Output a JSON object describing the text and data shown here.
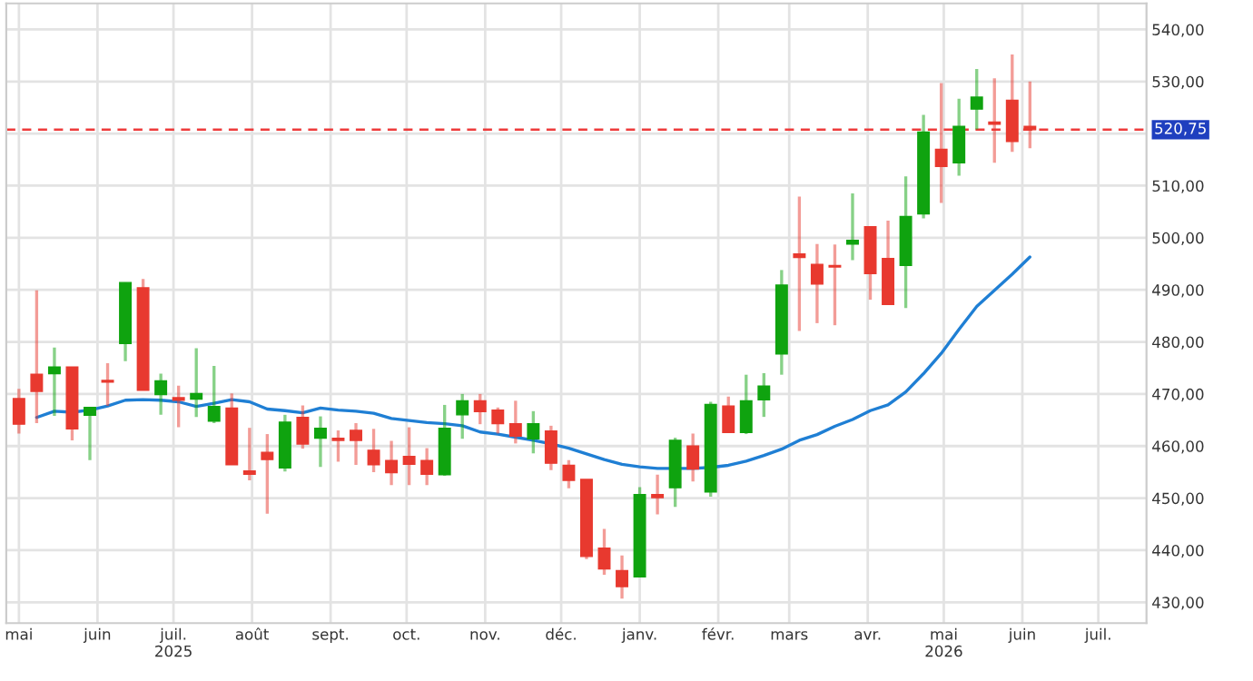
{
  "chart_data": {
    "type": "candlestick",
    "x": [
      "2025-05-01",
      "2025-05-08",
      "2025-05-15",
      "2025-05-22",
      "2025-05-29",
      "2025-06-05",
      "2025-06-12",
      "2025-06-19",
      "2025-06-26",
      "2025-07-03",
      "2025-07-10",
      "2025-07-17",
      "2025-07-24",
      "2025-07-31",
      "2025-08-07",
      "2025-08-14",
      "2025-08-21",
      "2025-08-28",
      "2025-09-04",
      "2025-09-11",
      "2025-09-18",
      "2025-09-25",
      "2025-10-02",
      "2025-10-09",
      "2025-10-16",
      "2025-10-23",
      "2025-10-30",
      "2025-11-06",
      "2025-11-13",
      "2025-11-20",
      "2025-11-27",
      "2025-12-04",
      "2025-12-11",
      "2025-12-18",
      "2025-12-25",
      "2026-01-01",
      "2026-01-08",
      "2026-01-15",
      "2026-01-22",
      "2026-01-29",
      "2026-02-05",
      "2026-02-12",
      "2026-02-19",
      "2026-02-26",
      "2026-03-05",
      "2026-03-12",
      "2026-03-19",
      "2026-03-26",
      "2026-04-02",
      "2026-04-09",
      "2026-04-16",
      "2026-04-23",
      "2026-04-30",
      "2026-05-07",
      "2026-05-14",
      "2026-05-21",
      "2026-05-28",
      "2026-06-04"
    ],
    "ohlc": [
      [
        469.1,
        471.0,
        462.4,
        464.2
      ],
      [
        473.8,
        489.9,
        464.4,
        470.5
      ],
      [
        473.9,
        478.9,
        465.8,
        475.2
      ],
      [
        475.2,
        475.2,
        461.1,
        463.3
      ],
      [
        465.9,
        467.4,
        457.3,
        467.4
      ],
      [
        472.6,
        475.9,
        467.7,
        472.3
      ],
      [
        479.7,
        491.4,
        476.3,
        491.4
      ],
      [
        490.4,
        492.1,
        470.7,
        470.7
      ],
      [
        469.9,
        473.9,
        466.0,
        472.5
      ],
      [
        469.3,
        471.6,
        463.6,
        468.8
      ],
      [
        469.0,
        478.8,
        465.6,
        470.1
      ],
      [
        464.8,
        475.4,
        464.4,
        467.6
      ],
      [
        467.3,
        470.1,
        456.4,
        456.4
      ],
      [
        455.2,
        463.5,
        453.4,
        454.6
      ],
      [
        458.8,
        462.3,
        447.0,
        457.4
      ],
      [
        455.8,
        466.0,
        455.1,
        464.6
      ],
      [
        465.5,
        467.8,
        459.5,
        460.4
      ],
      [
        461.5,
        465.7,
        456.0,
        463.4
      ],
      [
        461.5,
        463.0,
        457.0,
        461.1
      ],
      [
        463.0,
        464.4,
        456.4,
        461.1
      ],
      [
        459.2,
        463.3,
        455.0,
        456.4
      ],
      [
        457.2,
        461.0,
        452.5,
        454.9
      ],
      [
        458.0,
        463.6,
        452.5,
        456.5
      ],
      [
        457.2,
        459.6,
        452.5,
        454.6
      ],
      [
        454.5,
        467.9,
        454.3,
        463.4
      ],
      [
        466.0,
        470.0,
        461.4,
        468.7
      ],
      [
        468.7,
        470.0,
        464.2,
        466.6
      ],
      [
        466.9,
        467.4,
        462.4,
        464.3
      ],
      [
        464.3,
        468.7,
        460.5,
        461.9
      ],
      [
        461.4,
        466.7,
        458.6,
        464.3
      ],
      [
        462.9,
        463.9,
        455.4,
        456.7
      ],
      [
        456.3,
        457.3,
        451.9,
        453.4
      ],
      [
        453.6,
        453.6,
        438.3,
        438.8
      ],
      [
        440.4,
        444.1,
        435.3,
        436.4
      ],
      [
        436.1,
        439.0,
        430.7,
        433.0
      ],
      [
        434.9,
        452.1,
        434.9,
        450.7
      ],
      [
        450.7,
        454.5,
        446.9,
        450.1
      ],
      [
        452.0,
        461.6,
        448.3,
        461.1
      ],
      [
        460.0,
        462.4,
        453.2,
        455.6
      ],
      [
        451.2,
        468.5,
        450.3,
        468.0
      ],
      [
        467.7,
        469.5,
        462.6,
        462.6
      ],
      [
        462.6,
        473.7,
        462.3,
        468.7
      ],
      [
        468.9,
        474.0,
        465.6,
        471.5
      ],
      [
        477.7,
        493.8,
        473.7,
        490.9
      ],
      [
        496.9,
        507.9,
        482.1,
        496.2
      ],
      [
        494.9,
        498.8,
        483.6,
        491.1
      ],
      [
        494.6,
        498.7,
        483.2,
        494.4
      ],
      [
        498.8,
        508.5,
        495.7,
        499.5
      ],
      [
        502.1,
        502.1,
        488.1,
        493.1
      ],
      [
        496.0,
        503.3,
        487.2,
        487.2
      ],
      [
        494.7,
        511.8,
        486.5,
        504.1
      ],
      [
        504.6,
        523.6,
        503.7,
        520.3
      ],
      [
        517.0,
        529.7,
        506.7,
        513.7
      ],
      [
        514.4,
        526.7,
        511.9,
        521.4
      ],
      [
        524.7,
        532.4,
        520.8,
        527.0
      ],
      [
        522.2,
        530.6,
        514.4,
        521.8
      ],
      [
        526.4,
        535.2,
        516.5,
        518.5
      ],
      [
        521.4,
        530.0,
        517.2,
        520.75
      ]
    ],
    "colors": [
      "#e8392f",
      "#e8392f",
      "#0fa30f",
      "#e8392f",
      "#0fa30f",
      "#e8392f",
      "#0fa30f",
      "#e8392f",
      "#0fa30f",
      "#e8392f",
      "#0fa30f",
      "#0fa30f",
      "#e8392f",
      "#e8392f",
      "#e8392f",
      "#0fa30f",
      "#e8392f",
      "#0fa30f",
      "#e8392f",
      "#e8392f",
      "#e8392f",
      "#e8392f",
      "#e8392f",
      "#e8392f",
      "#0fa30f",
      "#0fa30f",
      "#e8392f",
      "#e8392f",
      "#e8392f",
      "#0fa30f",
      "#e8392f",
      "#e8392f",
      "#e8392f",
      "#e8392f",
      "#e8392f",
      "#0fa30f",
      "#e8392f",
      "#0fa30f",
      "#e8392f",
      "#0fa30f",
      "#e8392f",
      "#0fa30f",
      "#0fa30f",
      "#0fa30f",
      "#e8392f",
      "#e8392f",
      "#e8392f",
      "#0fa30f",
      "#e8392f",
      "#e8392f",
      "#0fa30f",
      "#0fa30f",
      "#e8392f",
      "#0fa30f",
      "#0fa30f",
      "#e8392f",
      "#e8392f",
      "#e8392f"
    ],
    "series": [
      {
        "type": "line",
        "color": "#1f7fd4",
        "values": [
          null,
          465.5,
          466.7,
          466.5,
          466.9,
          467.7,
          468.8,
          468.9,
          468.8,
          468.5,
          467.6,
          468.2,
          468.9,
          468.5,
          467.1,
          466.8,
          466.4,
          467.3,
          466.9,
          466.7,
          466.3,
          465.3,
          464.9,
          464.5,
          464.3,
          463.9,
          462.7,
          462.3,
          461.7,
          461.1,
          460.4,
          459.6,
          458.5,
          457.4,
          456.5,
          456.0,
          455.7,
          455.7,
          455.7,
          455.9,
          456.3,
          457.1,
          458.2,
          459.4,
          461.1,
          462.2,
          463.8,
          465.1,
          466.8,
          467.9,
          470.4,
          473.9,
          477.8,
          482.4,
          486.8,
          489.9,
          493.0,
          496.3
        ]
      }
    ],
    "xlim": [
      "2025-04-26",
      "2026-07-20"
    ],
    "xticks": [
      {
        "value": "2025-05-01",
        "label": "mai"
      },
      {
        "value": "2025-06-01",
        "label": "juin"
      },
      {
        "value": "2025-07-01",
        "label": "juil.\n2025"
      },
      {
        "value": "2025-08-01",
        "label": "août"
      },
      {
        "value": "2025-09-01",
        "label": "sept."
      },
      {
        "value": "2025-10-01",
        "label": "oct."
      },
      {
        "value": "2025-11-01",
        "label": "nov."
      },
      {
        "value": "2025-12-01",
        "label": "déc."
      },
      {
        "value": "2026-01-01",
        "label": "janv."
      },
      {
        "value": "2026-02-01",
        "label": "févr."
      },
      {
        "value": "2026-03-01",
        "label": "mars"
      },
      {
        "value": "2026-04-01",
        "label": "avr."
      },
      {
        "value": "2026-05-01",
        "label": "mai\n2026"
      },
      {
        "value": "2026-06-01",
        "label": "juin"
      },
      {
        "value": "2026-07-01",
        "label": "juil."
      }
    ],
    "ylim": [
      426,
      545
    ],
    "yticks": [
      {
        "value": 430,
        "label": "430,00"
      },
      {
        "value": 440,
        "label": "440,00"
      },
      {
        "value": 450,
        "label": "450,00"
      },
      {
        "value": 460,
        "label": "460,00"
      },
      {
        "value": 470,
        "label": "470,00"
      },
      {
        "value": 480,
        "label": "480,00"
      },
      {
        "value": 490,
        "label": "490,00"
      },
      {
        "value": 500,
        "label": "500,00"
      },
      {
        "value": 510,
        "label": "510,00"
      },
      {
        "value": 520,
        "label": null
      },
      {
        "value": 530,
        "label": "530,00"
      },
      {
        "value": 540,
        "label": "540,00"
      }
    ],
    "ref_lines": [
      {
        "axis": "y",
        "value": 520.75,
        "label": "520,75",
        "color": "#ee3b3b",
        "line_style": "dashed"
      }
    ],
    "grid": true,
    "legend": false
  }
}
